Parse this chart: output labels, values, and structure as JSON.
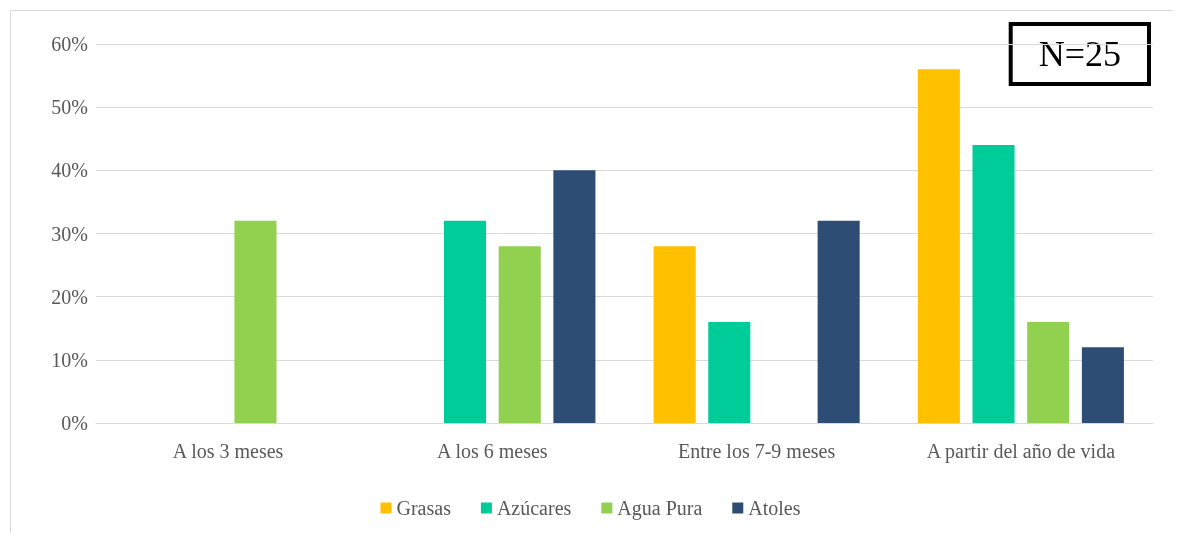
{
  "chart_data": {
    "type": "bar",
    "categories": [
      "A los 3 meses",
      "A los 6 meses",
      "Entre los 7-9 meses",
      "A partir del año de vida"
    ],
    "series": [
      {
        "name": "Grasas",
        "color": "#ffc000",
        "values": [
          0,
          0,
          28,
          56
        ]
      },
      {
        "name": "Azúcares",
        "color": "#00cc99",
        "values": [
          0,
          32,
          16,
          44
        ]
      },
      {
        "name": "Agua Pura",
        "color": "#92d050",
        "values": [
          32,
          28,
          0,
          16
        ]
      },
      {
        "name": "Atoles",
        "color": "#2e4d74",
        "values": [
          0,
          40,
          32,
          12
        ]
      }
    ],
    "ylim": [
      0,
      60
    ],
    "yticks": [
      {
        "value": 0,
        "label": "0%"
      },
      {
        "value": 10,
        "label": "10%"
      },
      {
        "value": 20,
        "label": "20%"
      },
      {
        "value": 30,
        "label": "30%"
      },
      {
        "value": 40,
        "label": "40%"
      },
      {
        "value": 50,
        "label": "50%"
      },
      {
        "value": 60,
        "label": "60%"
      }
    ],
    "grid": "y",
    "legend": "bottom",
    "annotations": [
      "N=25"
    ]
  }
}
